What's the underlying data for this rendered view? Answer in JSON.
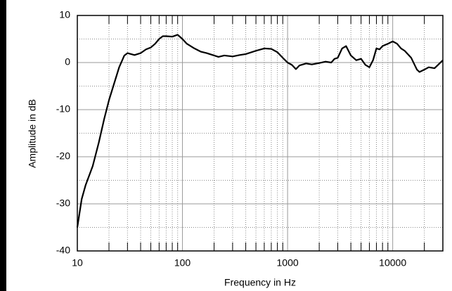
{
  "chart_data": {
    "type": "line",
    "xlabel": "Frequency in Hz",
    "ylabel": "Amplitude in dB",
    "x": [
      10,
      11,
      12,
      14,
      16,
      18,
      20,
      22,
      25,
      28,
      30,
      35,
      40,
      45,
      50,
      55,
      60,
      65,
      70,
      80,
      90,
      100,
      110,
      130,
      150,
      170,
      200,
      220,
      250,
      300,
      350,
      400,
      500,
      600,
      700,
      800,
      900,
      1000,
      1100,
      1200,
      1300,
      1500,
      1700,
      2000,
      2300,
      2600,
      2800,
      3000,
      3300,
      3600,
      4000,
      4500,
      5000,
      5500,
      6000,
      6500,
      7000,
      7500,
      8000,
      9000,
      10000,
      11000,
      12000,
      13000,
      15000,
      17000,
      18000,
      20000,
      22000,
      25000,
      27000,
      30000
    ],
    "values": [
      -35,
      -29,
      -26,
      -22,
      -17,
      -12,
      -8,
      -5,
      -1,
      1.5,
      2,
      1.6,
      2,
      2.8,
      3.2,
      4,
      5,
      5.6,
      5.6,
      5.5,
      5.9,
      5,
      4,
      3,
      2.3,
      2,
      1.5,
      1.2,
      1.5,
      1.3,
      1.6,
      1.8,
      2.5,
      3,
      2.9,
      2.2,
      1,
      0,
      -0.5,
      -1.4,
      -0.6,
      -0.2,
      -0.4,
      -0.1,
      0.2,
      0,
      0.8,
      1,
      3,
      3.5,
      1.5,
      0.5,
      0.8,
      -0.5,
      -1,
      0.5,
      3,
      2.8,
      3.5,
      4,
      4.5,
      4,
      3,
      2.5,
      1,
      -1.5,
      -2,
      -1.5,
      -1,
      -1.2,
      -0.5,
      0.5
    ],
    "color": "#000000",
    "xlim": [
      10,
      30000
    ],
    "xticks": [
      10,
      100,
      1000,
      10000
    ],
    "xscale": "log",
    "ylim": [
      -40,
      10
    ],
    "yticks": [
      -40,
      -30,
      -20,
      -10,
      0,
      10
    ],
    "grid": true
  }
}
